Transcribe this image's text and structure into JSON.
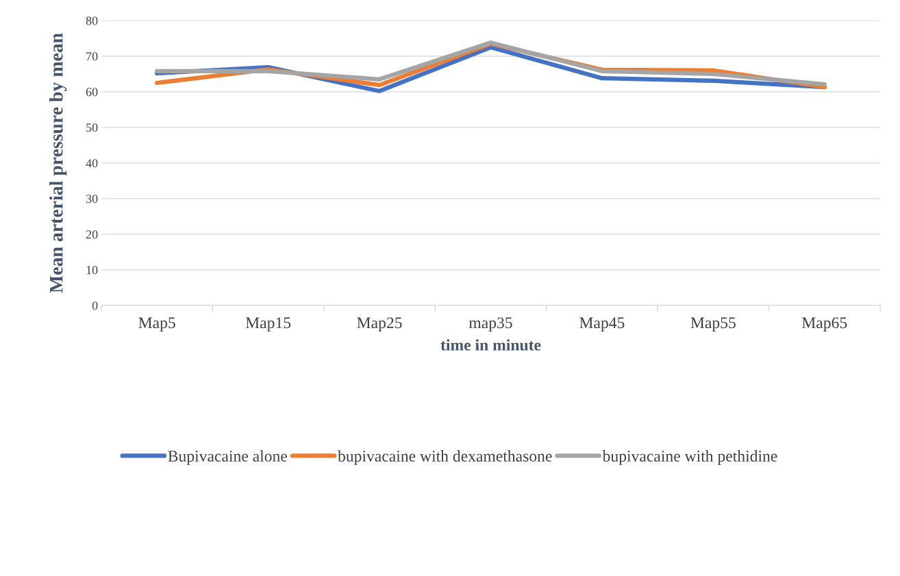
{
  "chart_data": {
    "type": "line",
    "xlabel": "time in minute",
    "ylabel": "Mean arterial pressure by mean",
    "categories": [
      "Map5",
      "Map15",
      "Map25",
      "map35",
      "Map45",
      "Map55",
      "Map65"
    ],
    "series": [
      {
        "name": "Bupivacaine alone",
        "color": "#4472c4",
        "values": [
          65.2,
          66.9,
          60.2,
          72.5,
          63.8,
          63.1,
          61.3
        ]
      },
      {
        "name": "bupivacaine with dexamethasone",
        "color": "#ed7d31",
        "values": [
          62.5,
          66.3,
          61.9,
          73.5,
          66.2,
          66.0,
          61.3
        ]
      },
      {
        "name": "bupivacaine with pethidine",
        "color": "#a5a5a5",
        "values": [
          65.8,
          65.8,
          63.5,
          73.8,
          65.8,
          65.0,
          62.1
        ]
      }
    ],
    "ylim": [
      0,
      80
    ],
    "yticks": [
      0,
      10,
      20,
      30,
      40,
      50,
      60,
      70,
      80
    ],
    "grid": "y",
    "legend": "bottom",
    "marker": "none",
    "line_style": "solid"
  }
}
